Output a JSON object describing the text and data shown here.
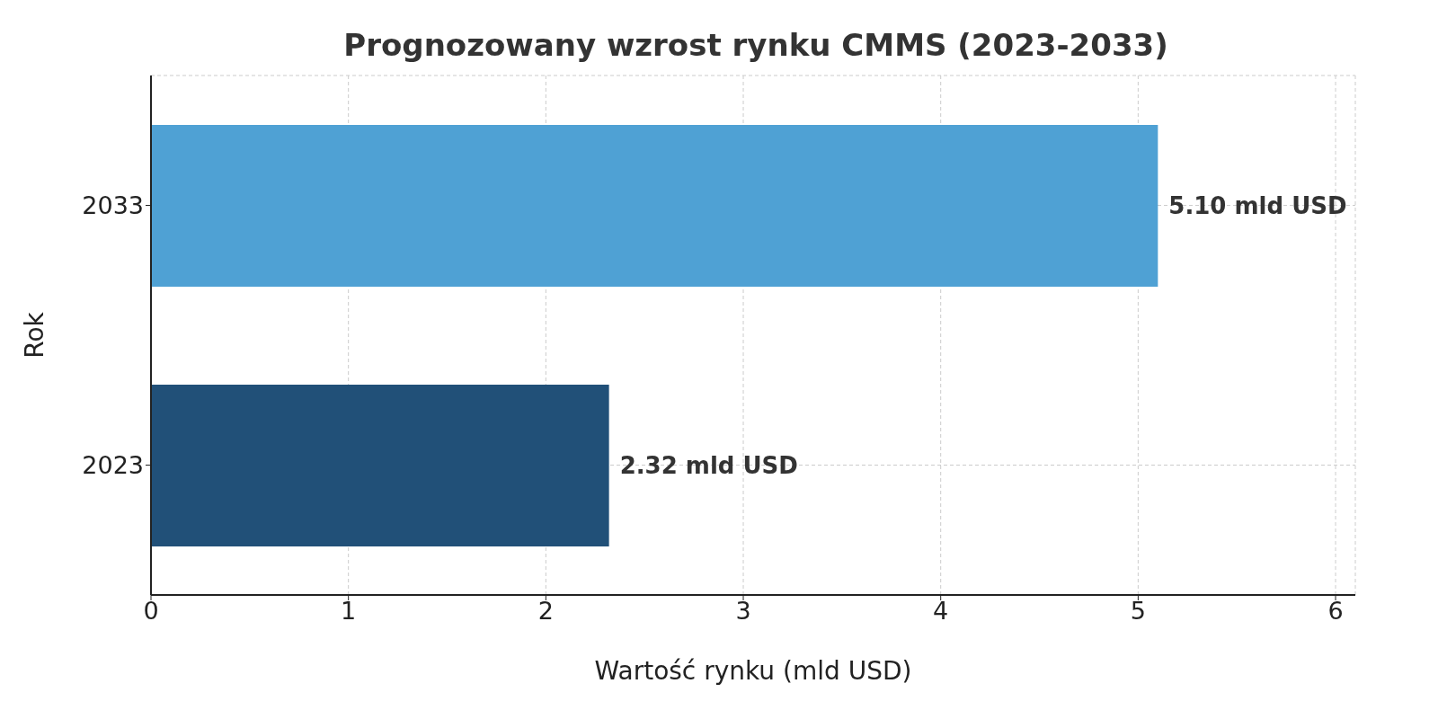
{
  "chart_data": {
    "type": "bar",
    "orientation": "horizontal",
    "title": "Prognozowany wzrost rynku CMMS (2023-2033)",
    "xlabel": "Wartość rynku (mld USD)",
    "ylabel": "Rok",
    "categories": [
      "2033",
      "2023"
    ],
    "values": [
      5.1,
      2.32
    ],
    "colors": [
      "#4fa1d4",
      "#215078"
    ],
    "value_labels": [
      "5.10 mld USD",
      "2.32 mld USD"
    ],
    "xlim": [
      0,
      6.1
    ],
    "xticks": [
      0,
      1,
      2,
      3,
      4,
      5,
      6
    ],
    "grid": true,
    "line_style": "dashed"
  }
}
